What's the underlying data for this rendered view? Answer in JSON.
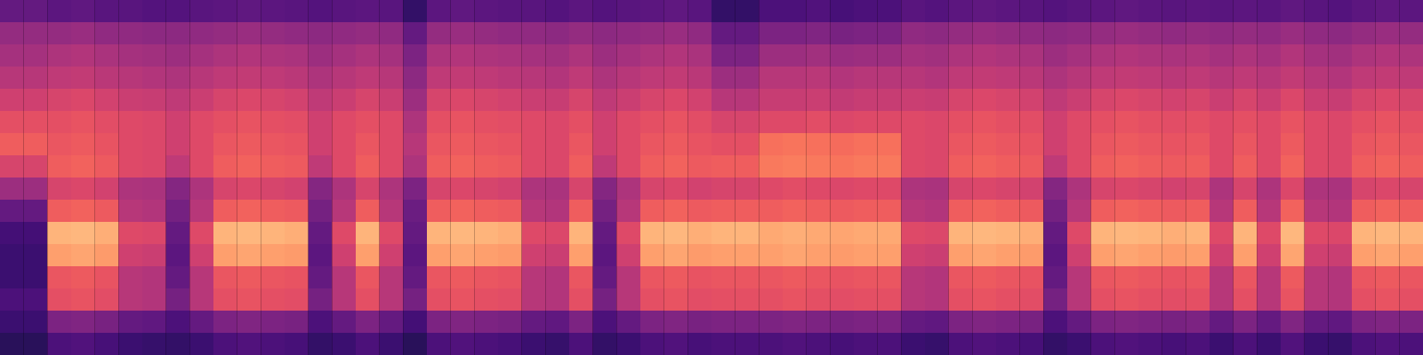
{
  "chart_data": {
    "type": "heatmap",
    "tick_labels": false,
    "color": "magma",
    "zlim": [
      0,
      100
    ],
    "cells": [
      [
        30,
        30,
        28,
        29,
        27,
        27,
        26,
        26,
        27,
        28,
        29,
        28,
        27,
        26,
        27,
        28,
        27,
        18,
        28,
        29,
        28,
        27,
        27,
        26,
        28,
        26,
        27,
        28,
        29,
        27,
        18,
        18,
        24,
        24,
        25,
        23,
        24,
        24,
        27,
        26,
        28,
        29,
        28,
        27,
        26,
        27,
        28,
        29,
        28,
        27,
        28,
        27,
        28,
        27,
        29,
        27,
        26,
        28,
        29,
        28
      ],
      [
        42,
        42,
        42,
        43,
        41,
        41,
        40,
        40,
        41,
        42,
        43,
        42,
        41,
        40,
        41,
        42,
        41,
        30,
        42,
        43,
        42,
        41,
        41,
        40,
        42,
        40,
        41,
        42,
        43,
        41,
        30,
        30,
        36,
        36,
        37,
        35,
        36,
        36,
        41,
        40,
        42,
        43,
        42,
        41,
        40,
        41,
        42,
        43,
        42,
        41,
        42,
        41,
        42,
        41,
        43,
        41,
        40,
        42,
        43,
        42
      ],
      [
        46,
        46,
        48,
        49,
        47,
        46,
        45,
        44,
        46,
        48,
        49,
        48,
        47,
        44,
        46,
        48,
        46,
        36,
        48,
        49,
        48,
        47,
        46,
        45,
        48,
        44,
        46,
        48,
        49,
        47,
        36,
        36,
        44,
        44,
        45,
        43,
        44,
        44,
        46,
        45,
        48,
        49,
        48,
        47,
        44,
        46,
        48,
        49,
        48,
        47,
        48,
        46,
        48,
        46,
        49,
        46,
        45,
        48,
        49,
        48
      ],
      [
        50,
        50,
        52,
        53,
        51,
        50,
        49,
        48,
        50,
        52,
        53,
        52,
        51,
        48,
        50,
        52,
        50,
        40,
        52,
        53,
        52,
        51,
        50,
        49,
        52,
        48,
        50,
        52,
        53,
        51,
        44,
        44,
        50,
        50,
        51,
        49,
        50,
        50,
        50,
        49,
        52,
        53,
        52,
        51,
        48,
        50,
        52,
        53,
        52,
        51,
        52,
        50,
        52,
        50,
        53,
        50,
        49,
        52,
        53,
        52
      ],
      [
        56,
        56,
        58,
        59,
        57,
        55,
        54,
        52,
        55,
        58,
        59,
        58,
        57,
        52,
        55,
        58,
        55,
        44,
        58,
        59,
        58,
        57,
        55,
        54,
        58,
        52,
        55,
        58,
        59,
        57,
        50,
        50,
        54,
        54,
        55,
        53,
        54,
        54,
        55,
        54,
        58,
        59,
        58,
        57,
        52,
        55,
        58,
        59,
        58,
        57,
        58,
        55,
        58,
        55,
        59,
        55,
        54,
        58,
        59,
        58
      ],
      [
        62,
        62,
        62,
        63,
        61,
        60,
        59,
        56,
        60,
        62,
        63,
        62,
        61,
        56,
        60,
        62,
        60,
        48,
        62,
        63,
        62,
        61,
        60,
        59,
        62,
        56,
        60,
        62,
        63,
        61,
        58,
        58,
        60,
        60,
        61,
        59,
        60,
        60,
        60,
        59,
        62,
        63,
        62,
        61,
        56,
        60,
        62,
        63,
        62,
        61,
        62,
        60,
        62,
        60,
        63,
        60,
        59,
        62,
        63,
        62
      ],
      [
        66,
        66,
        64,
        65,
        63,
        60,
        59,
        56,
        60,
        64,
        65,
        64,
        63,
        56,
        60,
        64,
        60,
        50,
        64,
        65,
        64,
        63,
        60,
        59,
        64,
        56,
        60,
        64,
        65,
        63,
        62,
        62,
        70,
        71,
        70,
        69,
        70,
        70,
        60,
        59,
        64,
        65,
        64,
        63,
        56,
        60,
        64,
        65,
        64,
        63,
        64,
        60,
        64,
        60,
        65,
        60,
        59,
        64,
        65,
        64
      ],
      [
        58,
        58,
        66,
        67,
        65,
        60,
        59,
        52,
        60,
        66,
        67,
        66,
        65,
        52,
        60,
        66,
        60,
        48,
        66,
        67,
        66,
        65,
        60,
        59,
        66,
        52,
        60,
        66,
        67,
        65,
        66,
        66,
        72,
        73,
        72,
        71,
        72,
        72,
        60,
        59,
        66,
        67,
        66,
        65,
        52,
        60,
        66,
        67,
        66,
        65,
        66,
        60,
        66,
        60,
        67,
        60,
        59,
        66,
        67,
        66
      ],
      [
        44,
        44,
        58,
        59,
        57,
        48,
        47,
        38,
        48,
        58,
        59,
        58,
        57,
        38,
        48,
        58,
        48,
        36,
        58,
        59,
        58,
        57,
        48,
        47,
        58,
        38,
        48,
        58,
        59,
        57,
        58,
        58,
        60,
        61,
        60,
        59,
        60,
        60,
        48,
        47,
        58,
        59,
        58,
        57,
        38,
        48,
        58,
        59,
        58,
        57,
        58,
        48,
        58,
        48,
        59,
        48,
        47,
        58,
        59,
        58
      ],
      [
        30,
        30,
        66,
        67,
        65,
        50,
        49,
        34,
        50,
        66,
        67,
        66,
        65,
        34,
        50,
        66,
        50,
        32,
        66,
        67,
        66,
        65,
        50,
        49,
        66,
        34,
        50,
        66,
        67,
        65,
        66,
        66,
        66,
        67,
        66,
        65,
        66,
        66,
        50,
        49,
        66,
        67,
        66,
        65,
        34,
        50,
        66,
        67,
        66,
        65,
        66,
        50,
        66,
        50,
        67,
        50,
        49,
        66,
        67,
        66
      ],
      [
        22,
        22,
        84,
        85,
        83,
        60,
        59,
        30,
        60,
        84,
        85,
        84,
        83,
        30,
        60,
        84,
        60,
        30,
        84,
        85,
        84,
        83,
        60,
        59,
        84,
        30,
        60,
        84,
        85,
        83,
        84,
        84,
        82,
        83,
        82,
        81,
        82,
        82,
        60,
        59,
        84,
        85,
        84,
        83,
        30,
        60,
        84,
        85,
        84,
        83,
        84,
        60,
        84,
        60,
        85,
        60,
        59,
        84,
        85,
        84
      ],
      [
        20,
        20,
        80,
        81,
        79,
        56,
        55,
        28,
        56,
        80,
        81,
        80,
        79,
        28,
        56,
        80,
        56,
        28,
        80,
        81,
        80,
        79,
        56,
        55,
        80,
        28,
        56,
        80,
        81,
        79,
        80,
        80,
        80,
        81,
        80,
        79,
        80,
        80,
        56,
        55,
        80,
        81,
        80,
        79,
        28,
        56,
        80,
        81,
        80,
        79,
        80,
        56,
        80,
        56,
        81,
        56,
        55,
        80,
        81,
        80
      ],
      [
        20,
        20,
        64,
        65,
        63,
        50,
        49,
        30,
        50,
        64,
        65,
        64,
        63,
        30,
        50,
        64,
        50,
        30,
        64,
        65,
        64,
        63,
        50,
        49,
        64,
        30,
        50,
        64,
        65,
        63,
        64,
        64,
        64,
        65,
        64,
        63,
        64,
        64,
        50,
        49,
        64,
        65,
        64,
        63,
        30,
        50,
        64,
        65,
        64,
        63,
        64,
        50,
        64,
        50,
        65,
        50,
        49,
        64,
        65,
        64
      ],
      [
        24,
        24,
        62,
        63,
        61,
        50,
        49,
        34,
        50,
        62,
        63,
        62,
        61,
        34,
        50,
        62,
        50,
        34,
        62,
        63,
        62,
        61,
        50,
        49,
        62,
        34,
        50,
        62,
        63,
        61,
        62,
        62,
        62,
        63,
        62,
        61,
        62,
        62,
        50,
        49,
        62,
        63,
        62,
        61,
        34,
        50,
        62,
        63,
        62,
        61,
        62,
        50,
        62,
        50,
        63,
        50,
        49,
        62,
        63,
        62
      ],
      [
        20,
        20,
        36,
        37,
        35,
        30,
        29,
        24,
        30,
        36,
        37,
        36,
        35,
        24,
        30,
        36,
        30,
        22,
        36,
        37,
        36,
        35,
        30,
        29,
        36,
        24,
        30,
        36,
        37,
        35,
        36,
        36,
        36,
        37,
        36,
        35,
        36,
        36,
        30,
        29,
        36,
        37,
        36,
        35,
        24,
        30,
        36,
        37,
        36,
        35,
        36,
        30,
        36,
        30,
        37,
        30,
        29,
        36,
        37,
        36
      ],
      [
        16,
        16,
        24,
        25,
        23,
        20,
        19,
        18,
        20,
        24,
        25,
        24,
        23,
        18,
        20,
        24,
        20,
        16,
        24,
        25,
        24,
        23,
        20,
        19,
        24,
        18,
        20,
        24,
        25,
        23,
        24,
        24,
        24,
        25,
        24,
        23,
        24,
        24,
        20,
        19,
        24,
        25,
        24,
        23,
        18,
        20,
        24,
        25,
        24,
        23,
        24,
        20,
        24,
        20,
        25,
        20,
        19,
        24,
        25,
        24
      ]
    ]
  }
}
